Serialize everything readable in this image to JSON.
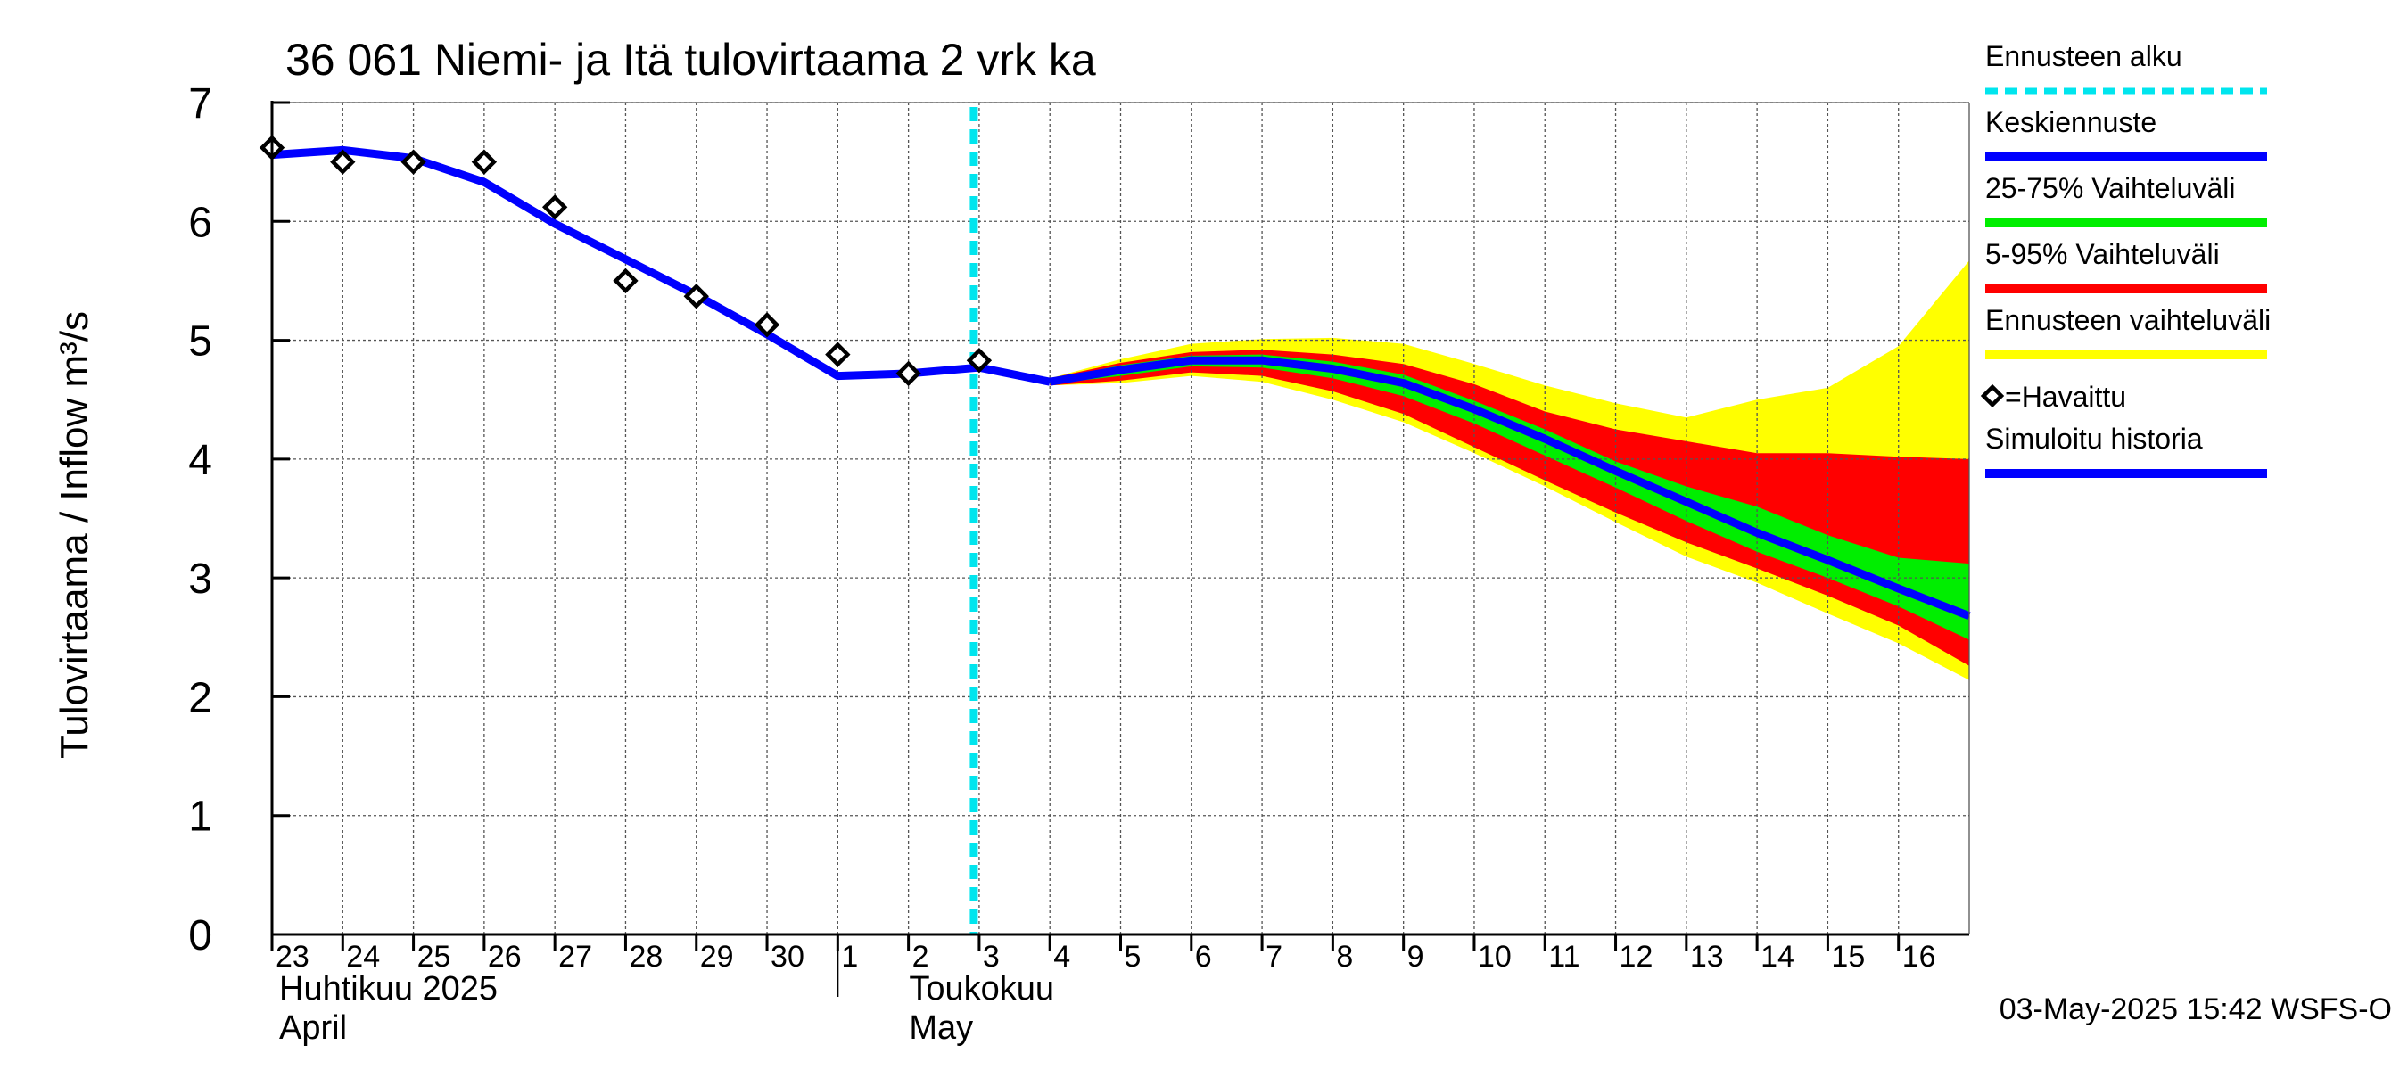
{
  "chart_data": {
    "type": "line",
    "title": "36 061 Niemi- ja Itä tulovirtaama 2 vrk ka",
    "ylabel": "Tulovirtaama / Inflow   m³/s",
    "ylim": [
      0,
      7
    ],
    "yticks": [
      0,
      1,
      2,
      3,
      4,
      5,
      6,
      7
    ],
    "grid": true,
    "legend_position": "right",
    "x_start": "2025-04-23",
    "x_end": "2025-05-17",
    "day_labels": [
      "23",
      "24",
      "25",
      "26",
      "27",
      "28",
      "29",
      "30",
      "1",
      "2",
      "3",
      "4",
      "5",
      "6",
      "7",
      "8",
      "9",
      "10",
      "11",
      "12",
      "13",
      "14",
      "15",
      "16"
    ],
    "month_labels": [
      {
        "line1": "Huhtikuu  2025",
        "line2": "April"
      },
      {
        "line1": "Toukokuu",
        "line2": "May"
      }
    ],
    "forecast_start": "2025-05-03",
    "timestamp": "03-May-2025 15:42 WSFS-O",
    "legend": [
      {
        "label": "Ennusteen alku",
        "color": "#00e5ee",
        "style": "dashed"
      },
      {
        "label": "Keskiennuste",
        "color": "#0000ff",
        "style": "line"
      },
      {
        "label": "25-75% Vaihteluväli",
        "color": "#00ee00",
        "style": "line"
      },
      {
        "label": "5-95% Vaihteluväli",
        "color": "#ff0000",
        "style": "line"
      },
      {
        "label": "Ennusteen vaihteluväli",
        "color": "#ffff00",
        "style": "line"
      },
      {
        "label": "=Havaittu",
        "color": "#000000",
        "style": "diamond"
      },
      {
        "label": "Simuloitu historia",
        "color": "#0000ff",
        "style": "line"
      }
    ],
    "observed": [
      {
        "x": "2025-04-23",
        "y": 6.62
      },
      {
        "x": "2025-04-24",
        "y": 6.5
      },
      {
        "x": "2025-04-25",
        "y": 6.5
      },
      {
        "x": "2025-04-26",
        "y": 6.5
      },
      {
        "x": "2025-04-27",
        "y": 6.12
      },
      {
        "x": "2025-04-28",
        "y": 5.5
      },
      {
        "x": "2025-04-29",
        "y": 5.37
      },
      {
        "x": "2025-04-30",
        "y": 5.13
      },
      {
        "x": "2025-05-01",
        "y": 4.88
      },
      {
        "x": "2025-05-02",
        "y": 4.72
      },
      {
        "x": "2025-05-03",
        "y": 4.83
      }
    ],
    "simulated_history": [
      {
        "x": "2025-04-23",
        "y": 6.56
      },
      {
        "x": "2025-04-24",
        "y": 6.6
      },
      {
        "x": "2025-04-25",
        "y": 6.53
      },
      {
        "x": "2025-04-26",
        "y": 6.33
      },
      {
        "x": "2025-04-27",
        "y": 5.98
      },
      {
        "x": "2025-04-28",
        "y": 5.68
      },
      {
        "x": "2025-04-29",
        "y": 5.38
      },
      {
        "x": "2025-04-30",
        "y": 5.05
      },
      {
        "x": "2025-05-01",
        "y": 4.7
      },
      {
        "x": "2025-05-02",
        "y": 4.72
      },
      {
        "x": "2025-05-03",
        "y": 4.77
      },
      {
        "x": "2025-05-04",
        "y": 4.65
      }
    ],
    "forecast": [
      {
        "x": "2025-05-04",
        "median": 4.65,
        "p25": 4.63,
        "p75": 4.67,
        "p5": 4.62,
        "p95": 4.68,
        "min": 4.62,
        "max": 4.68
      },
      {
        "x": "2025-05-05",
        "median": 4.75,
        "p25": 4.7,
        "p75": 4.79,
        "p5": 4.66,
        "p95": 4.81,
        "min": 4.64,
        "max": 4.84
      },
      {
        "x": "2025-05-06",
        "median": 4.83,
        "p25": 4.78,
        "p75": 4.87,
        "p5": 4.73,
        "p95": 4.9,
        "min": 4.7,
        "max": 4.97
      },
      {
        "x": "2025-05-07",
        "median": 4.83,
        "p25": 4.77,
        "p75": 4.88,
        "p5": 4.7,
        "p95": 4.92,
        "min": 4.65,
        "max": 5.01
      },
      {
        "x": "2025-05-08",
        "median": 4.76,
        "p25": 4.68,
        "p75": 4.82,
        "p5": 4.57,
        "p95": 4.88,
        "min": 4.5,
        "max": 5.02
      },
      {
        "x": "2025-05-09",
        "median": 4.64,
        "p25": 4.53,
        "p75": 4.71,
        "p5": 4.38,
        "p95": 4.8,
        "min": 4.31,
        "max": 4.97
      },
      {
        "x": "2025-05-10",
        "median": 4.42,
        "p25": 4.3,
        "p75": 4.49,
        "p5": 4.1,
        "p95": 4.63,
        "min": 4.05,
        "max": 4.8
      },
      {
        "x": "2025-05-11",
        "median": 4.17,
        "p25": 4.03,
        "p75": 4.25,
        "p5": 3.82,
        "p95": 4.4,
        "min": 3.77,
        "max": 4.62
      },
      {
        "x": "2025-05-12",
        "median": 3.9,
        "p25": 3.76,
        "p75": 3.98,
        "p5": 3.55,
        "p95": 4.25,
        "min": 3.47,
        "max": 4.47
      },
      {
        "x": "2025-05-13",
        "median": 3.64,
        "p25": 3.48,
        "p75": 3.77,
        "p5": 3.3,
        "p95": 4.15,
        "min": 3.18,
        "max": 4.35
      },
      {
        "x": "2025-05-14",
        "median": 3.38,
        "p25": 3.22,
        "p75": 3.6,
        "p5": 3.08,
        "p95": 4.05,
        "min": 2.96,
        "max": 4.5
      },
      {
        "x": "2025-05-15",
        "median": 3.15,
        "p25": 3.0,
        "p75": 3.36,
        "p5": 2.85,
        "p95": 4.05,
        "min": 2.7,
        "max": 4.6
      },
      {
        "x": "2025-05-16",
        "median": 2.91,
        "p25": 2.76,
        "p75": 3.17,
        "p5": 2.6,
        "p95": 4.02,
        "min": 2.45,
        "max": 4.95
      },
      {
        "x": "2025-05-17",
        "median": 2.68,
        "p25": 2.48,
        "p75": 3.12,
        "p5": 2.26,
        "p95": 4.0,
        "min": 2.14,
        "max": 5.67
      }
    ]
  }
}
